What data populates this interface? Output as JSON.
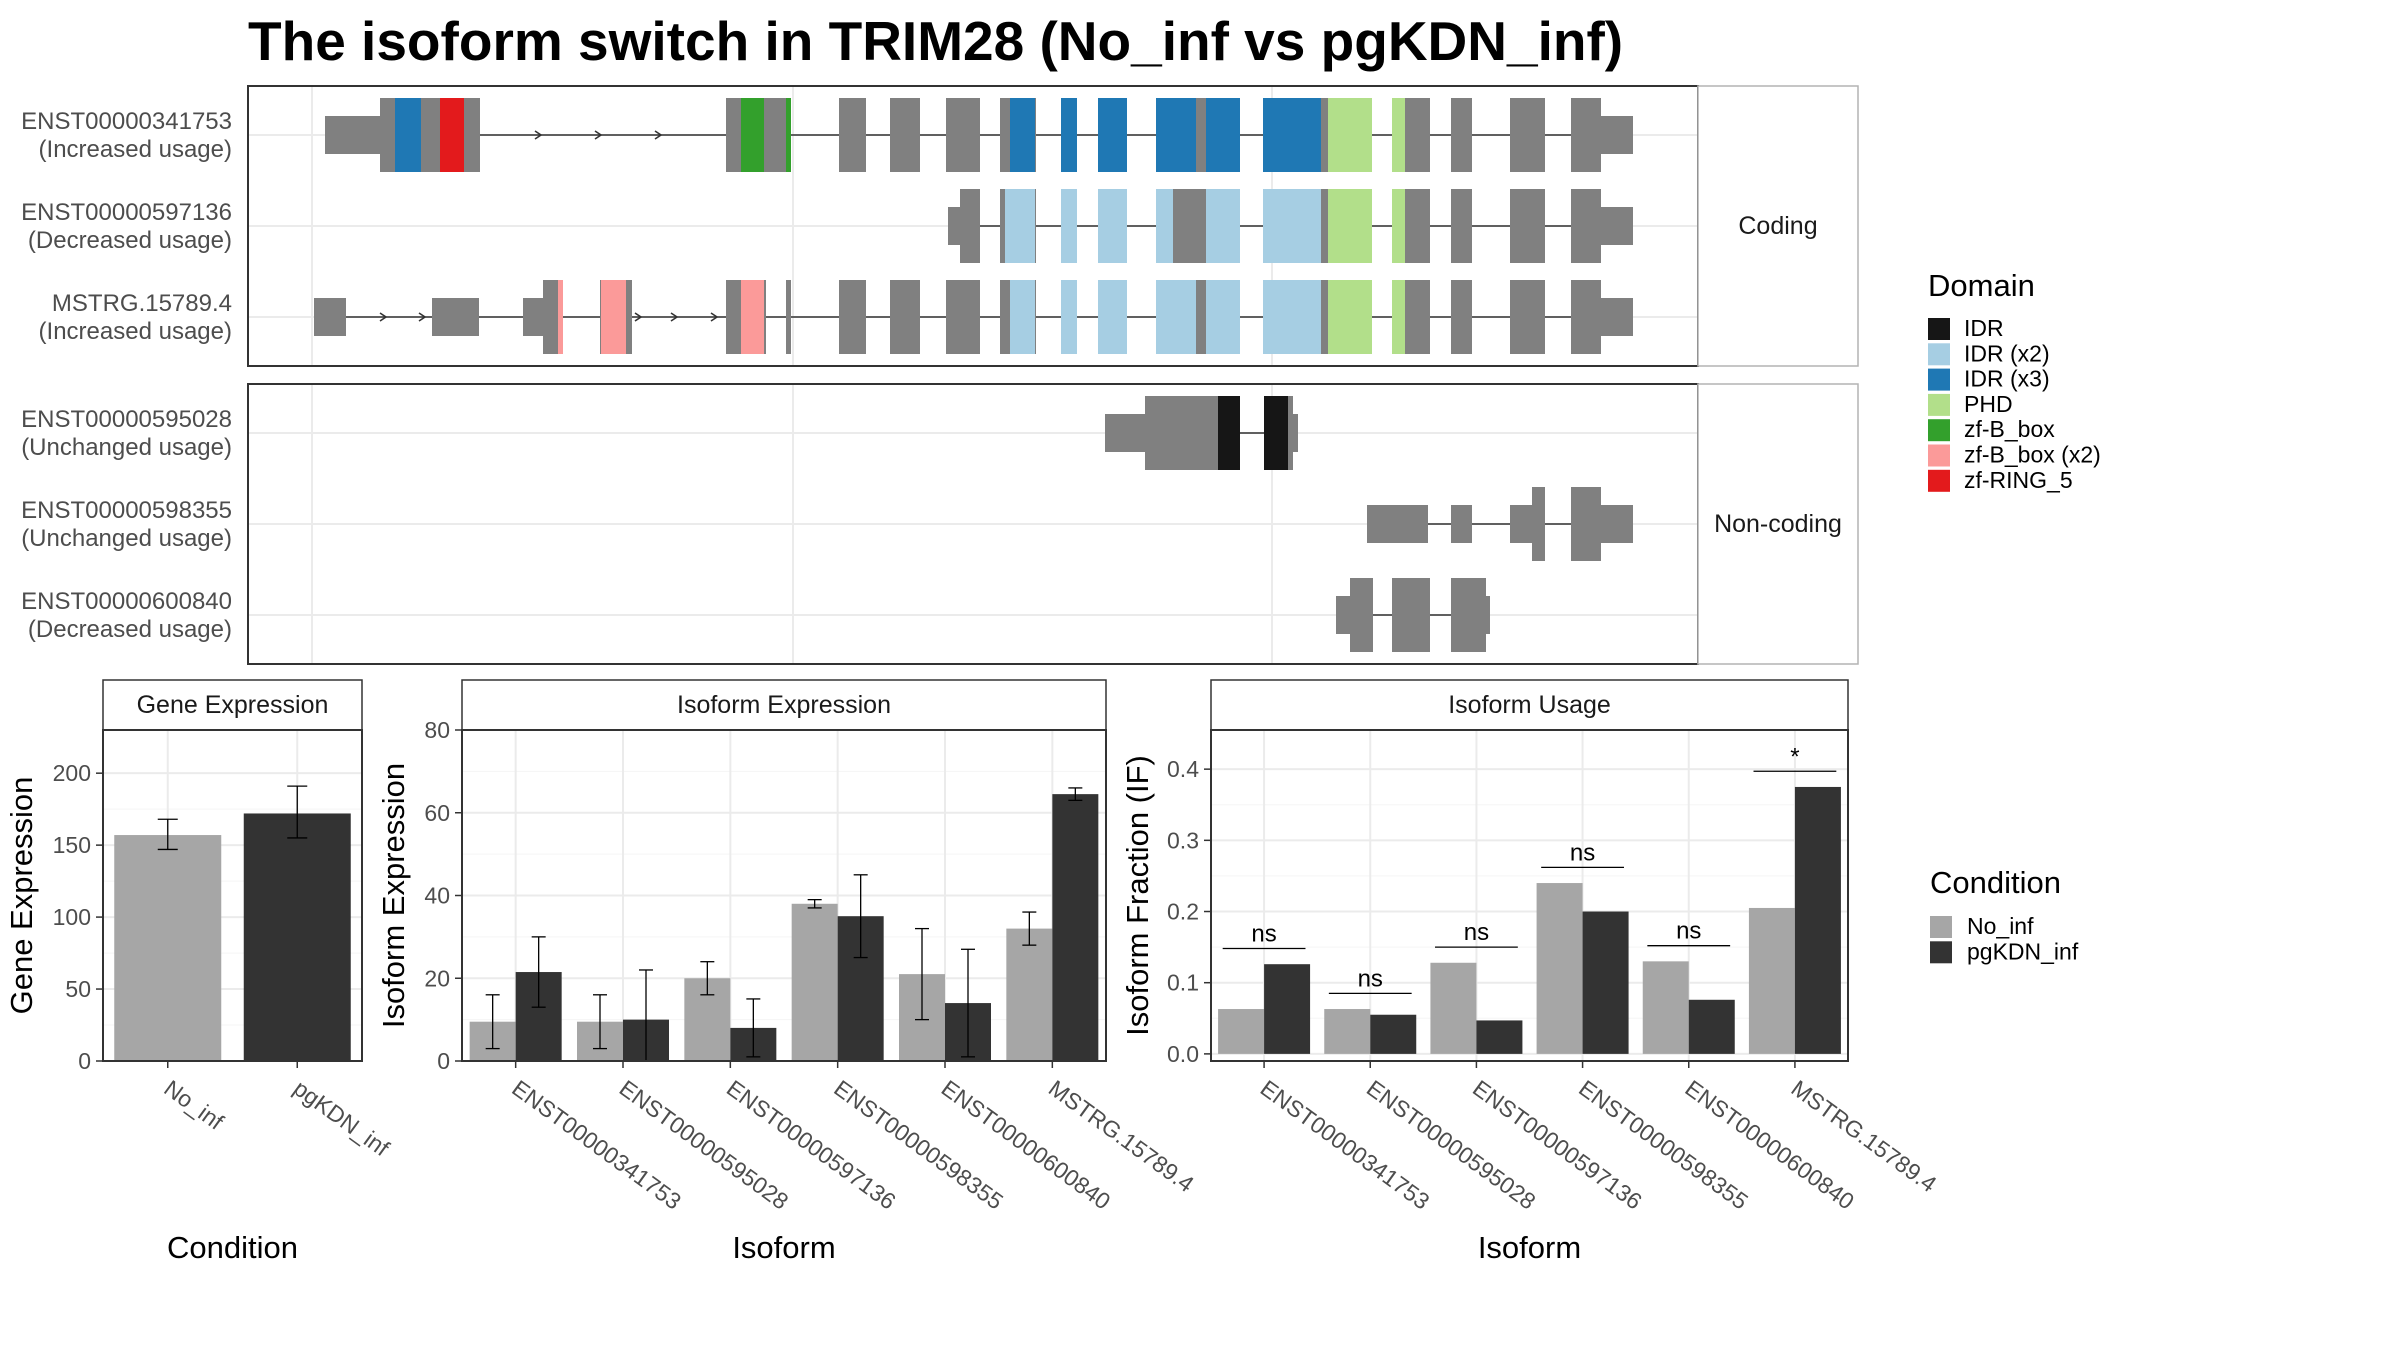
{
  "title": "The isoform switch in TRIM28 (No_inf vs pgKDN_inf)",
  "structure": {
    "panels": [
      {
        "label": "Coding",
        "isoforms": [
          {
            "id": "ENST00000341753",
            "usage": "(Increased usage)"
          },
          {
            "id": "ENST00000597136",
            "usage": "(Decreased usage)"
          },
          {
            "id": "MSTRG.15789.4",
            "usage": "(Increased usage)"
          }
        ]
      },
      {
        "label": "Non-coding",
        "isoforms": [
          {
            "id": "ENST00000595028",
            "usage": "(Unchanged usage)"
          },
          {
            "id": "ENST00000598355",
            "usage": "(Unchanged usage)"
          },
          {
            "id": "ENST00000600840",
            "usage": "(Decreased usage)"
          }
        ]
      }
    ]
  },
  "legend_domain": {
    "title": "Domain",
    "items": [
      {
        "label": "IDR",
        "color": "#161616"
      },
      {
        "label": "IDR (x2)",
        "color": "#A6CEE3"
      },
      {
        "label": "IDR (x3)",
        "color": "#1F78B4"
      },
      {
        "label": "PHD",
        "color": "#B2DF8A"
      },
      {
        "label": "zf-B_box",
        "color": "#33A02C"
      },
      {
        "label": "zf-B_box (x2)",
        "color": "#FB9A99"
      },
      {
        "label": "zf-RING_5",
        "color": "#E31A1C"
      }
    ]
  },
  "legend_condition": {
    "title": "Condition",
    "items": [
      {
        "label": "No_inf",
        "color": "#A6A6A6"
      },
      {
        "label": "pgKDN_inf",
        "color": "#333333"
      }
    ]
  },
  "chart_data": [
    {
      "type": "bar",
      "title": "Gene Expression",
      "xlabel": "Condition",
      "ylabel": "Gene Expression",
      "ylim": [
        0,
        230
      ],
      "yticks": [
        0,
        50,
        100,
        150,
        200
      ],
      "categories": [
        "No_inf",
        "pgKDN_inf"
      ],
      "values": [
        157,
        172
      ],
      "err_low": [
        147,
        155
      ],
      "err_high": [
        168,
        191
      ],
      "colors": [
        "#A6A6A6",
        "#333333"
      ]
    },
    {
      "type": "bar",
      "title": "Isoform Expression",
      "xlabel": "Isoform",
      "ylabel": "Isoform Expression",
      "ylim": [
        0,
        80
      ],
      "yticks": [
        0,
        20,
        40,
        60,
        80
      ],
      "categories": [
        "ENST00000341753",
        "ENST00000595028",
        "ENST00000597136",
        "ENST00000598355",
        "ENST00000600840",
        "MSTRG.15789.4"
      ],
      "series": [
        {
          "name": "No_inf",
          "values": [
            9.5,
            9.5,
            20,
            38,
            21,
            32
          ],
          "err_low": [
            3,
            3,
            16,
            37,
            10,
            28
          ],
          "err_high": [
            16,
            16,
            24,
            39,
            32,
            36
          ]
        },
        {
          "name": "pgKDN_inf",
          "values": [
            21.5,
            10,
            8,
            35,
            14,
            64.5
          ],
          "err_low": [
            13,
            0,
            1,
            25,
            1,
            63
          ],
          "err_high": [
            30,
            22,
            15,
            45,
            27,
            66
          ]
        }
      ]
    },
    {
      "type": "bar",
      "title": "Isoform Usage",
      "xlabel": "Isoform",
      "ylabel": "Isoform Fraction (IF)",
      "ylim": [
        -0.01,
        0.455
      ],
      "yticks": [
        0.0,
        0.1,
        0.2,
        0.3,
        0.4
      ],
      "categories": [
        "ENST00000341753",
        "ENST00000595028",
        "ENST00000597136",
        "ENST00000598355",
        "ENST00000600840",
        "MSTRG.15789.4"
      ],
      "series": [
        {
          "name": "No_inf",
          "values": [
            0.063,
            0.063,
            0.128,
            0.24,
            0.13,
            0.205
          ]
        },
        {
          "name": "pgKDN_inf",
          "values": [
            0.126,
            0.055,
            0.047,
            0.2,
            0.076,
            0.375
          ]
        }
      ],
      "significance": [
        "ns",
        "ns",
        "ns",
        "ns",
        "ns",
        "*"
      ]
    }
  ]
}
